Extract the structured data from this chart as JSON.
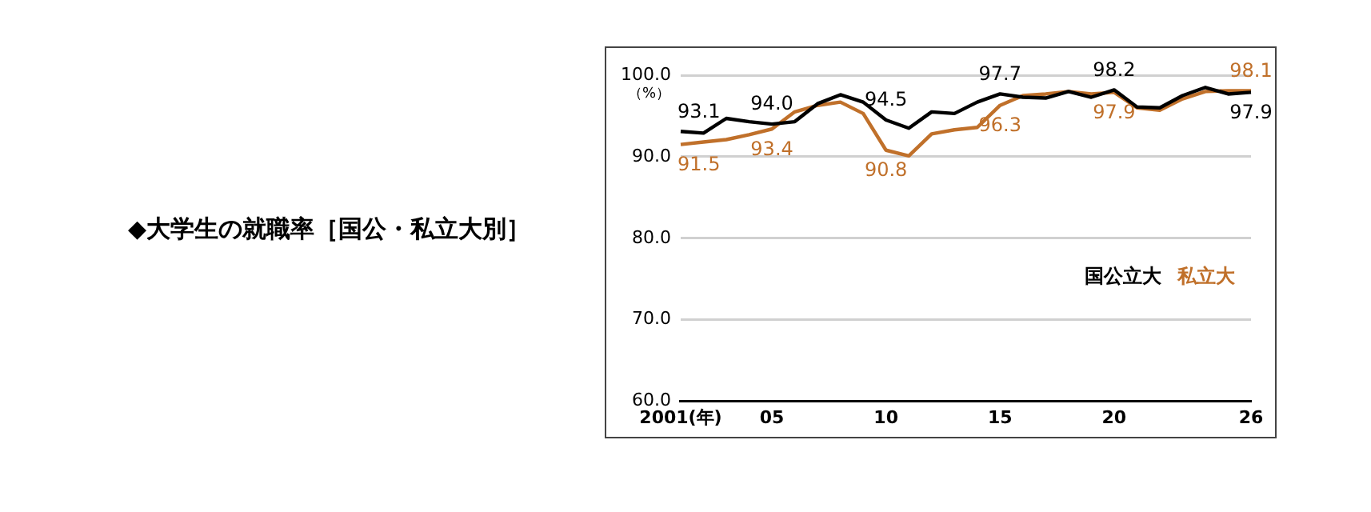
{
  "chart_data": {
    "type": "line",
    "title": "◆大学生の就職率［国公・私立大別］",
    "ylabel": "（%）",
    "categories": [
      "2001(年)",
      null,
      null,
      null,
      "05",
      null,
      null,
      null,
      null,
      "10",
      null,
      null,
      null,
      null,
      "15",
      null,
      null,
      null,
      null,
      "20",
      null,
      null,
      null,
      null,
      null,
      "26"
    ],
    "series": [
      {
        "name": "国公立大",
        "color": "#000000",
        "values": [
          93.1,
          92.9,
          94.7,
          94.3,
          94.0,
          94.3,
          96.5,
          97.6,
          96.7,
          94.5,
          93.5,
          95.5,
          95.3,
          96.7,
          97.7,
          97.3,
          97.2,
          98.0,
          97.3,
          98.2,
          96.1,
          96.0,
          97.5,
          98.5,
          97.7,
          97.9
        ],
        "value_labels": [
          "93.1",
          null,
          null,
          null,
          "94.0",
          null,
          null,
          null,
          null,
          "94.5",
          null,
          null,
          null,
          null,
          "97.7",
          null,
          null,
          null,
          null,
          "98.2",
          null,
          null,
          null,
          null,
          null,
          "97.9"
        ]
      },
      {
        "name": "私立大",
        "color": "#c0702a",
        "values": [
          91.5,
          91.8,
          92.1,
          92.7,
          93.4,
          95.5,
          96.3,
          96.7,
          95.3,
          90.8,
          90.1,
          92.8,
          93.3,
          93.6,
          96.3,
          97.5,
          97.7,
          98.0,
          97.7,
          97.9,
          96.0,
          95.7,
          97.1,
          98.0,
          98.1,
          98.1
        ],
        "value_labels": [
          "91.5",
          null,
          null,
          null,
          "93.4",
          null,
          null,
          null,
          null,
          "90.8",
          null,
          null,
          null,
          null,
          "96.3",
          null,
          null,
          null,
          null,
          "97.9",
          null,
          null,
          null,
          null,
          null,
          "98.1"
        ]
      }
    ],
    "ylim": [
      60,
      100
    ],
    "yticks": [
      {
        "value": 60,
        "label": "60.0"
      },
      {
        "value": 70,
        "label": "70.0"
      },
      {
        "value": 80,
        "label": "80.0"
      },
      {
        "value": 90,
        "label": "90.0"
      },
      {
        "value": 100,
        "label": "100.0"
      }
    ],
    "grid": "y",
    "legend": "right",
    "marker": "none",
    "line_style": "solid"
  }
}
